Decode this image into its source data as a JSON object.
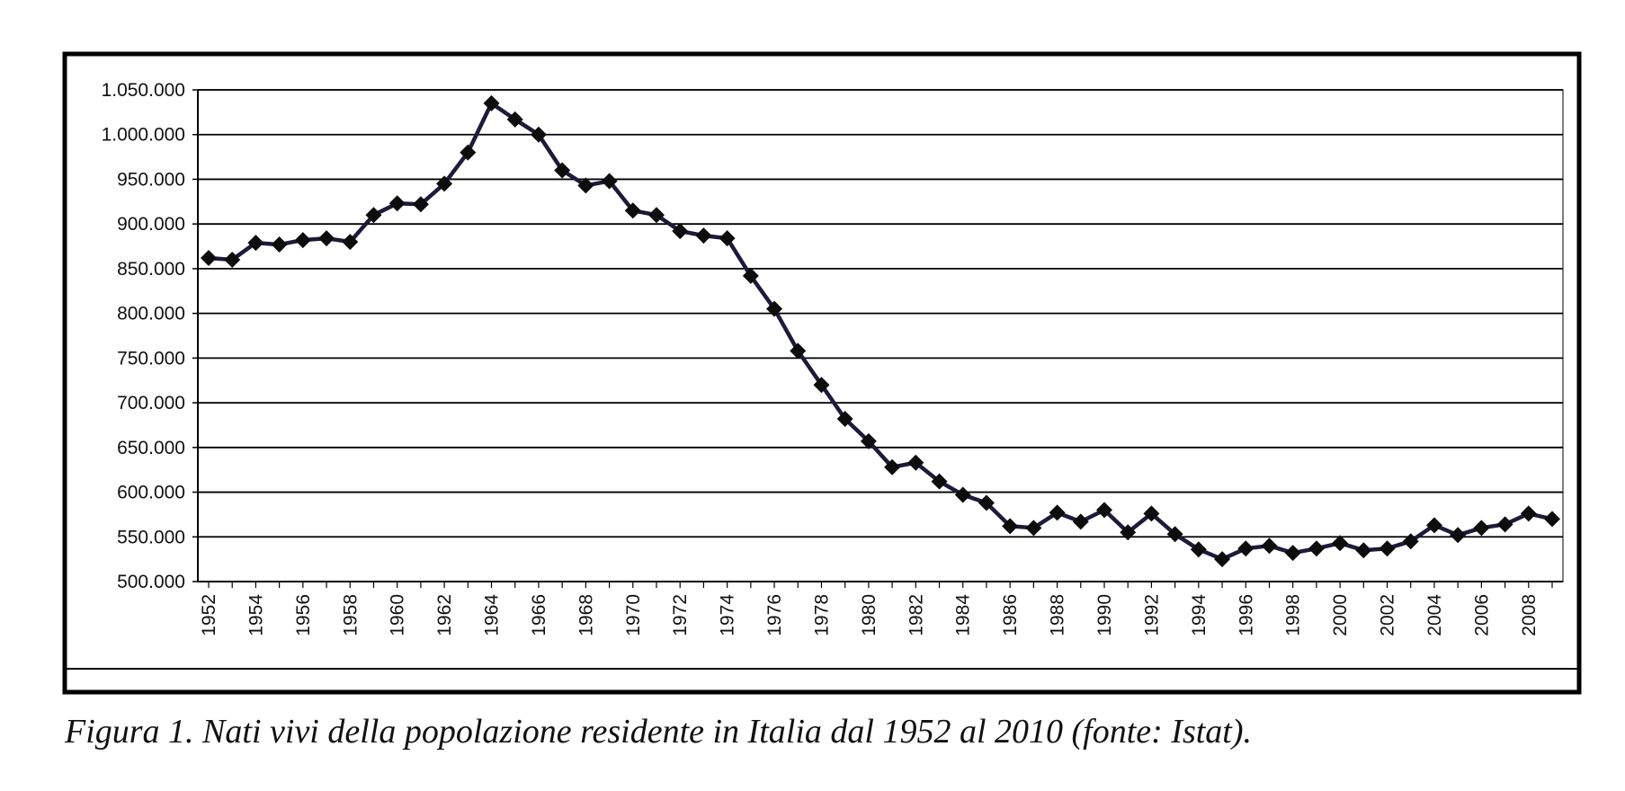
{
  "caption": "Figura 1. Nati vivi della popolazione residente in Italia dal 1952 al 2010 (fonte: Istat).",
  "colors": {
    "line": "#1b1b3a",
    "marker": "#0d0d0d",
    "grid": "#000000",
    "frame": "#000000"
  },
  "chart_data": {
    "type": "line",
    "title": "",
    "xlabel": "",
    "ylabel": "",
    "ylim": [
      500000,
      1050000
    ],
    "ytick_labels": [
      "500.000",
      "550.000",
      "600.000",
      "650.000",
      "700.000",
      "750.000",
      "800.000",
      "850.000",
      "900.000",
      "950.000",
      "1.000.000",
      "1.050.000"
    ],
    "xtick_labels": [
      "1952",
      "1954",
      "1956",
      "1958",
      "1960",
      "1962",
      "1964",
      "1966",
      "1968",
      "1970",
      "1972",
      "1974",
      "1976",
      "1978",
      "1980",
      "1982",
      "1984",
      "1986",
      "1988",
      "1990",
      "1992",
      "1994",
      "1996",
      "1998",
      "2000",
      "2002",
      "2004",
      "2006",
      "2008"
    ],
    "grid": true,
    "legend": "none",
    "marker": "diamond",
    "x": [
      1952,
      1953,
      1954,
      1955,
      1956,
      1957,
      1958,
      1959,
      1960,
      1961,
      1962,
      1963,
      1964,
      1965,
      1966,
      1967,
      1968,
      1969,
      1970,
      1971,
      1972,
      1973,
      1974,
      1975,
      1976,
      1977,
      1978,
      1979,
      1980,
      1981,
      1982,
      1983,
      1984,
      1985,
      1986,
      1987,
      1988,
      1989,
      1990,
      1991,
      1992,
      1993,
      1994,
      1995,
      1996,
      1997,
      1998,
      1999,
      2000,
      2001,
      2002,
      2003,
      2004,
      2005,
      2006,
      2007,
      2008,
      2009
    ],
    "series": [
      {
        "values": [
          862000,
          860000,
          879000,
          877000,
          882000,
          884000,
          880000,
          910000,
          923000,
          922000,
          945000,
          980000,
          1035000,
          1017000,
          1000000,
          960000,
          943000,
          948000,
          915000,
          910000,
          892000,
          887000,
          884000,
          842000,
          805000,
          758000,
          720000,
          682000,
          657000,
          628000,
          633000,
          612000,
          597000,
          588000,
          562000,
          560000,
          577000,
          567000,
          580000,
          555000,
          576000,
          553000,
          536000,
          525000,
          537000,
          540000,
          532000,
          537000,
          543000,
          535000,
          537000,
          545000,
          563000,
          552000,
          560000,
          564000,
          576000,
          570000
        ]
      }
    ]
  }
}
